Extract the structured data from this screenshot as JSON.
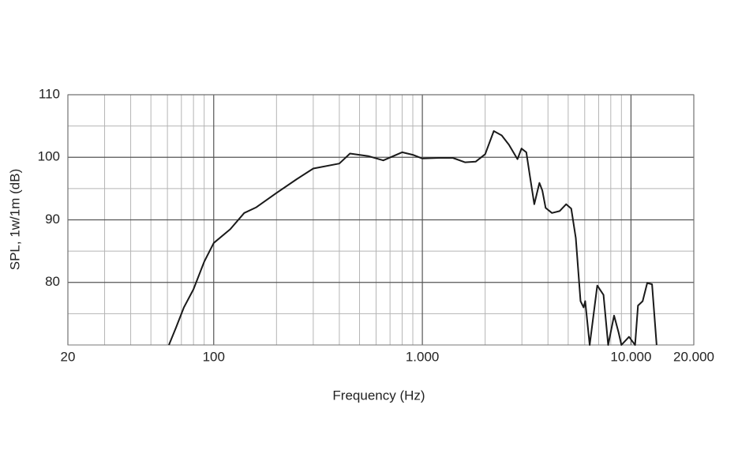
{
  "chart_data": {
    "type": "line",
    "xlabel": "Frequency (Hz)",
    "ylabel": "SPL, 1w/1m (dB)",
    "xscale": "log",
    "xlim": [
      20,
      20000
    ],
    "ylim": [
      70,
      110
    ],
    "xticks": [
      20,
      100,
      {
        "value": 1000,
        "label": "1.000"
      },
      {
        "value": 10000,
        "label": "10.000"
      },
      {
        "value": 20000,
        "label": "20.000"
      }
    ],
    "xminorticks": [
      30,
      40,
      50,
      60,
      70,
      80,
      90,
      200,
      300,
      400,
      500,
      600,
      700,
      800,
      900,
      2000,
      3000,
      4000,
      5000,
      6000,
      7000,
      8000,
      9000
    ],
    "yticks": [
      80,
      90,
      100,
      110
    ],
    "yminorticks": [
      75,
      85,
      95,
      105
    ],
    "grid": true,
    "series": [
      {
        "color": "#1a1a1a",
        "x": [
          61,
          66,
          72,
          80,
          90,
          100,
          120,
          140,
          160,
          200,
          250,
          300,
          400,
          450,
          550,
          650,
          800,
          900,
          1000,
          1200,
          1400,
          1600,
          1800,
          2000,
          2200,
          2400,
          2600,
          2857,
          2987,
          3150,
          3270,
          3440,
          3640,
          3760,
          3900,
          4180,
          4550,
          4890,
          5170,
          5440,
          5730,
          5930,
          6030,
          6340,
          6890,
          7380,
          7770,
          8300,
          8720,
          9000,
          9780,
          10460,
          10800,
          11370,
          11960,
          12620,
          13270
        ],
        "values": [
          70,
          72.8,
          76,
          78.9,
          83.3,
          86.3,
          88.5,
          91.1,
          92,
          94.3,
          96.5,
          98.2,
          99,
          100.6,
          100.2,
          99.5,
          100.8,
          100.4,
          99.8,
          99.9,
          99.9,
          99.2,
          99.3,
          100.5,
          104.2,
          103.5,
          102,
          99.7,
          101.4,
          100.8,
          97.2,
          92.5,
          95.9,
          94.7,
          91.9,
          91.1,
          91.4,
          92.5,
          91.8,
          87.1,
          77,
          76,
          77,
          70,
          79.5,
          78,
          70,
          74.7,
          72,
          70,
          71.3,
          70,
          76.3,
          77,
          79.9,
          79.7,
          70
        ]
      }
    ]
  }
}
